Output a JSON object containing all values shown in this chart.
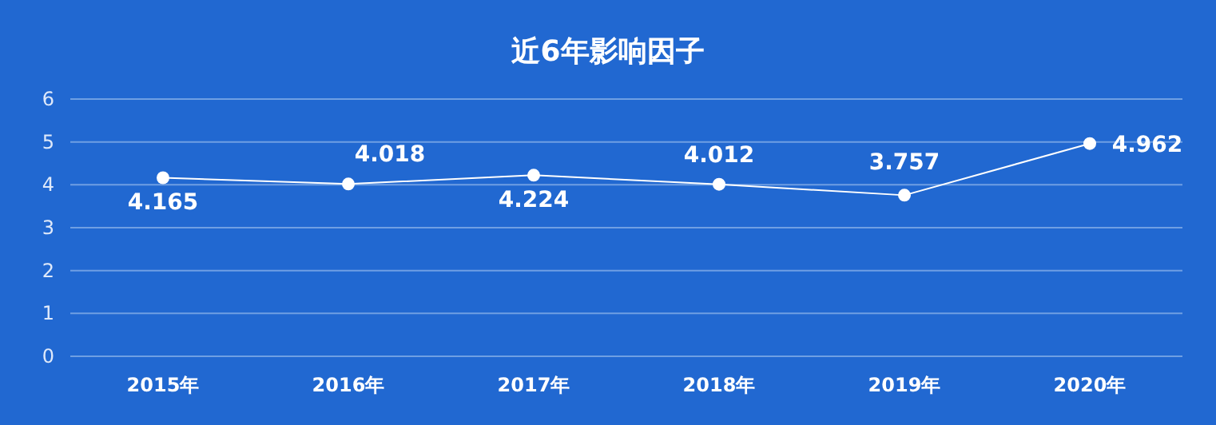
{
  "chart_data": {
    "type": "line",
    "title": "近6年影响因子",
    "categories": [
      "2015年",
      "2016年",
      "2017年",
      "2018年",
      "2019年",
      "2020年"
    ],
    "series": [
      {
        "color": "#ffffff",
        "values": [
          4.165,
          4.018,
          4.224,
          4.012,
          3.757,
          4.962
        ]
      }
    ],
    "ylim": [
      0,
      6
    ],
    "yticks": [
      0,
      1,
      2,
      3,
      4,
      5,
      6
    ],
    "grid": "y",
    "marker": "circle",
    "line_style": "solid",
    "data_labels": true
  }
}
